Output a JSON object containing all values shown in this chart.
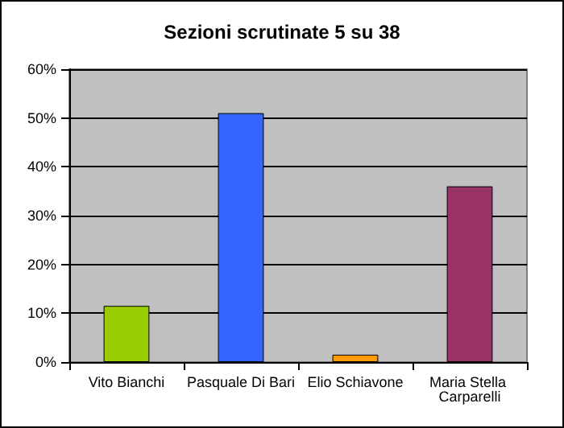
{
  "chart_data": {
    "type": "bar",
    "title": "Sezioni scrutinate 5 su 38",
    "categories": [
      "Vito Bianchi",
      "Pasquale Di Bari",
      "Elio Schiavone",
      "Maria Stella Carparelli"
    ],
    "values": [
      11.5,
      51,
      1.5,
      36
    ],
    "colors": [
      "#99cc00",
      "#3366ff",
      "#ff9900",
      "#993366"
    ],
    "ylim": [
      0,
      60
    ],
    "yticks": [
      {
        "value": 0,
        "label": "0%"
      },
      {
        "value": 10,
        "label": "10%"
      },
      {
        "value": 20,
        "label": "20%"
      },
      {
        "value": 30,
        "label": "30%"
      },
      {
        "value": 40,
        "label": "40%"
      },
      {
        "value": 50,
        "label": "50%"
      },
      {
        "value": 60,
        "label": "60%"
      }
    ],
    "grid": "y"
  }
}
